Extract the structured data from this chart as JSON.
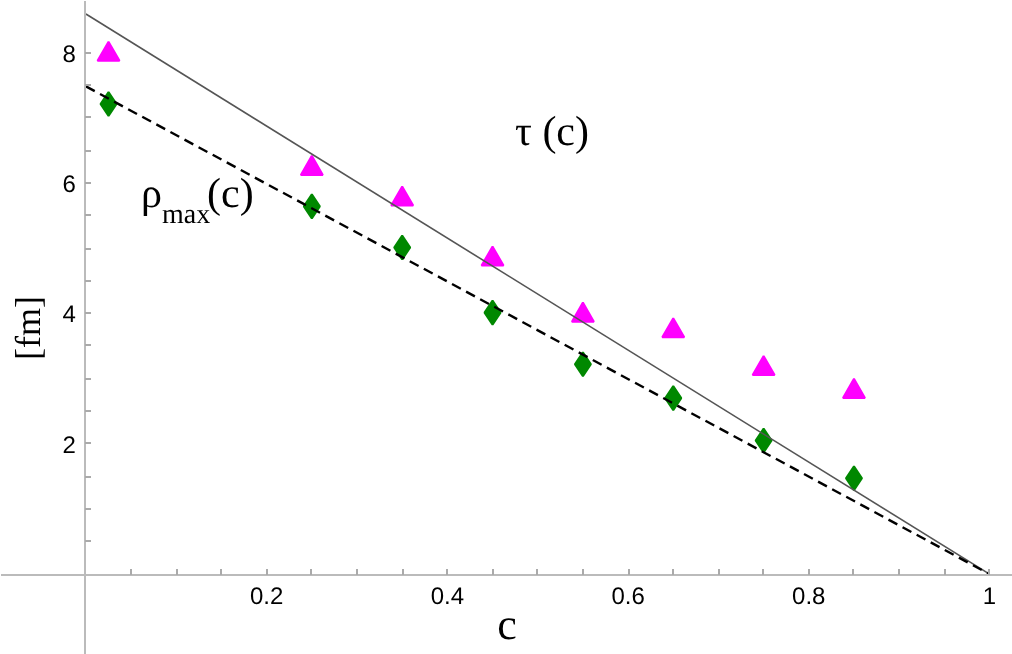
{
  "chart_data": {
    "type": "scatter",
    "xlabel": "c",
    "ylabel": "[fm]",
    "xlim": [
      -0.094,
      1.026
    ],
    "ylim": [
      -1.24,
      8.79
    ],
    "xticks": [
      {
        "value": 0.05,
        "label": null
      },
      {
        "value": 0.1,
        "label": null
      },
      {
        "value": 0.15,
        "label": null
      },
      0.2,
      {
        "value": 0.25,
        "label": null
      },
      {
        "value": 0.3,
        "label": null
      },
      {
        "value": 0.35,
        "label": null
      },
      0.4,
      {
        "value": 0.45,
        "label": null
      },
      {
        "value": 0.5,
        "label": null
      },
      {
        "value": 0.55,
        "label": null
      },
      0.6,
      {
        "value": 0.65,
        "label": null
      },
      {
        "value": 0.7,
        "label": null
      },
      {
        "value": 0.75,
        "label": null
      },
      0.8,
      {
        "value": 0.85,
        "label": null
      },
      {
        "value": 0.9,
        "label": null
      },
      {
        "value": 0.95,
        "label": null
      },
      1
    ],
    "yticks": [
      {
        "value": 0.5,
        "label": null
      },
      {
        "value": 1,
        "label": null
      },
      {
        "value": 1.5,
        "label": null
      },
      2,
      {
        "value": 2.5,
        "label": null
      },
      {
        "value": 3,
        "label": null
      },
      {
        "value": 3.5,
        "label": null
      },
      4,
      {
        "value": 4.5,
        "label": null
      },
      {
        "value": 5,
        "label": null
      },
      {
        "value": 5.5,
        "label": null
      },
      6,
      {
        "value": 6.5,
        "label": null
      },
      {
        "value": 7,
        "label": null
      },
      {
        "value": 7.5,
        "label": null
      },
      8
    ],
    "grid": false,
    "series": [
      {
        "marker": "triangle",
        "color": "#ff00ff",
        "x": [
          0.025,
          0.25,
          0.35,
          0.45,
          0.55,
          0.65,
          0.75,
          0.85
        ],
        "values": [
          7.97,
          6.22,
          5.75,
          4.83,
          3.97,
          3.73,
          3.15,
          2.8
        ]
      },
      {
        "marker": "diamond",
        "color": "#008800",
        "x": [
          0.025,
          0.25,
          0.35,
          0.45,
          0.55,
          0.65,
          0.75,
          0.85
        ],
        "values": [
          7.21,
          5.64,
          5.01,
          4.01,
          3.22,
          2.7,
          2.05,
          1.47
        ]
      },
      {
        "type": "line",
        "line_style": "solid",
        "color": "#555555",
        "x": [
          0,
          1
        ],
        "values": [
          8.59,
          0
        ]
      },
      {
        "type": "line",
        "line_style": "dashed",
        "color": "#000000",
        "x": [
          0,
          1
        ],
        "values": [
          7.48,
          0
        ]
      }
    ],
    "annotations": [
      "τ (c)",
      "ρ$_{max}$(c)"
    ]
  }
}
